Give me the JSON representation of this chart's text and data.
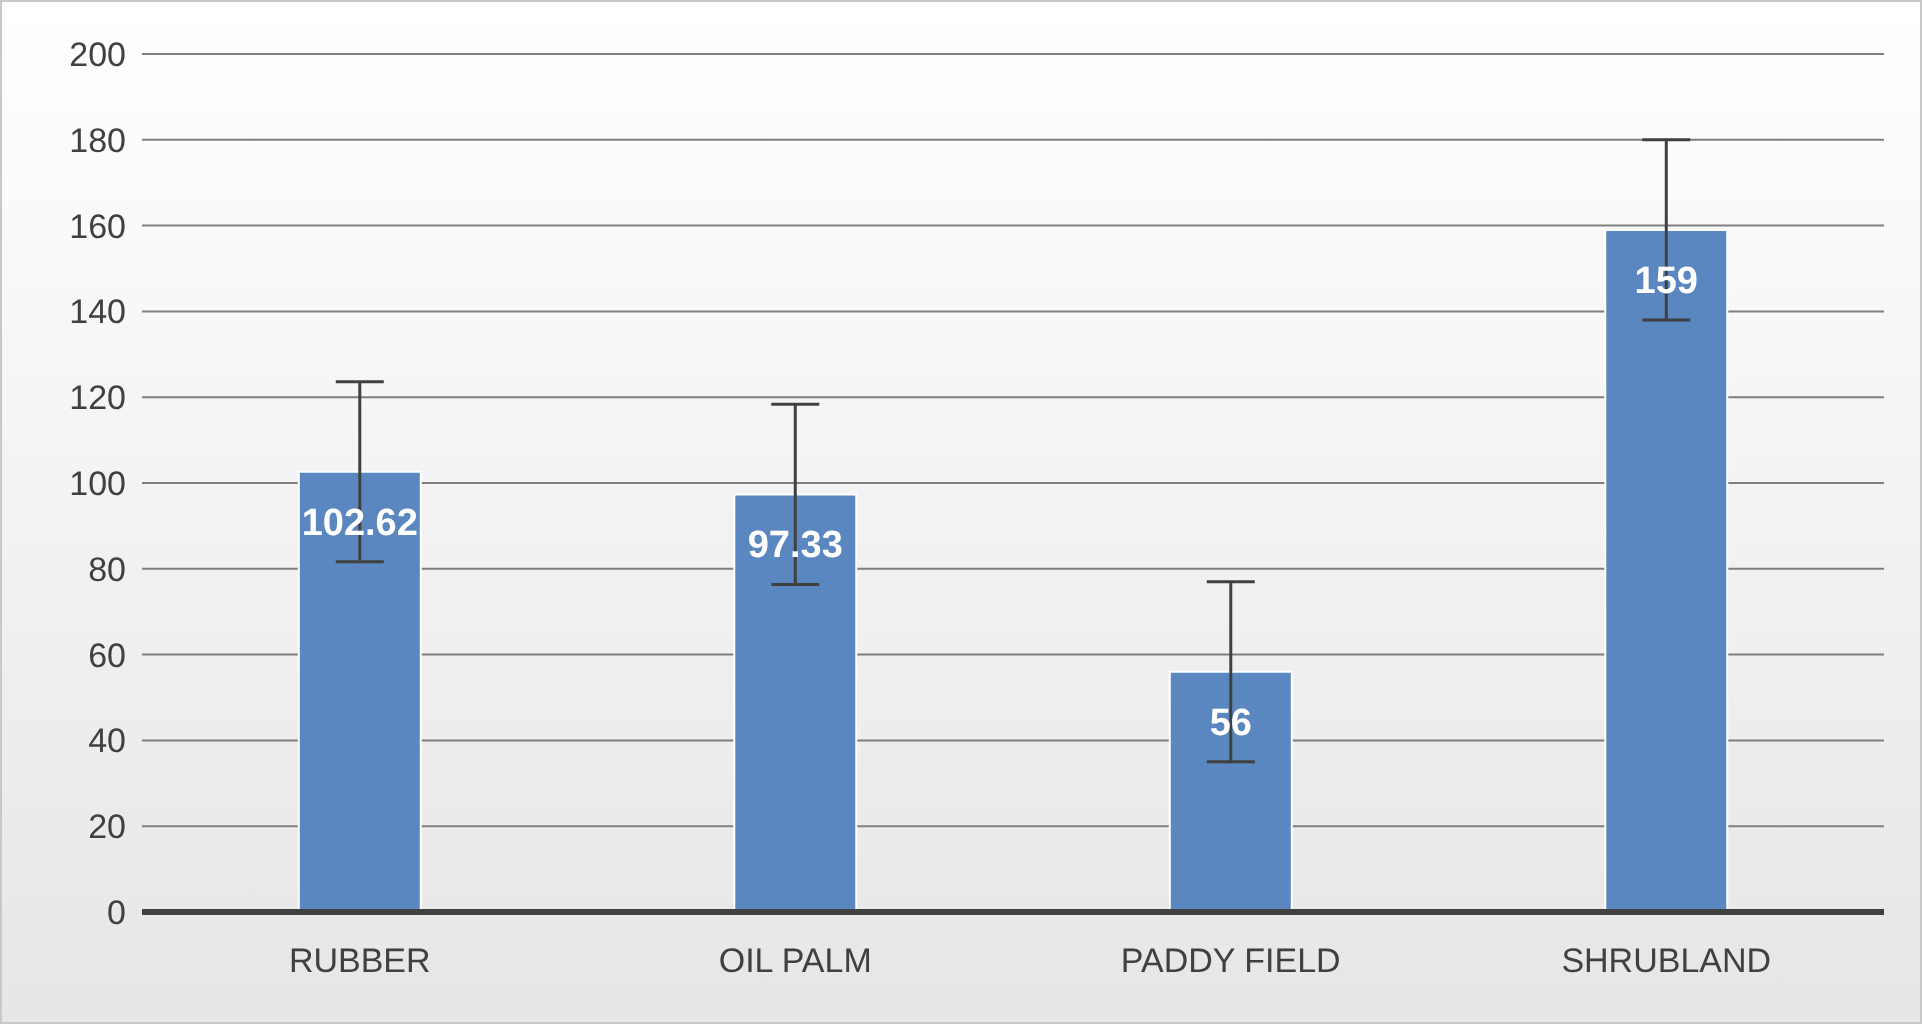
{
  "chart_data": {
    "type": "bar",
    "categories": [
      "RUBBER",
      "OIL PALM",
      "PADDY FIELD",
      "SHRUBLAND"
    ],
    "values": [
      102.62,
      97.33,
      56,
      159
    ],
    "errors": [
      21,
      21,
      21,
      21
    ],
    "color": "#5b87c1",
    "ylim": [
      0,
      200
    ],
    "yticks": [
      0,
      20,
      40,
      60,
      80,
      100,
      120,
      140,
      160,
      180,
      200
    ],
    "grid": "y",
    "data_labels": true
  }
}
